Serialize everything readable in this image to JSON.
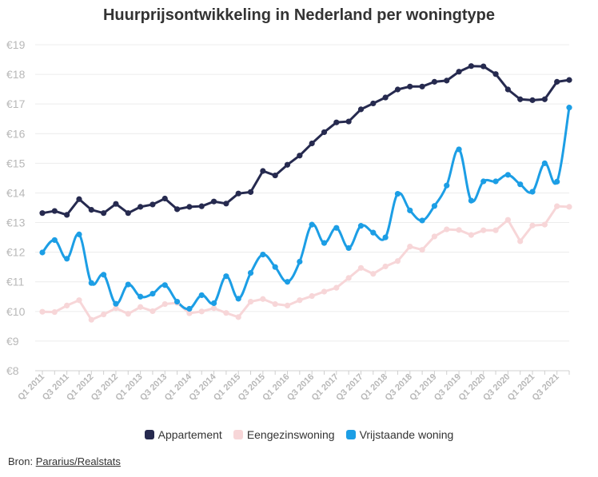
{
  "chart_data": {
    "type": "line",
    "title": "Huurprijsontwikkeling in Nederland per woningtype",
    "xlabel": "",
    "ylabel": "",
    "ylim": [
      8,
      19
    ],
    "ytick_values": [
      8,
      9,
      10,
      11,
      12,
      13,
      14,
      15,
      16,
      17,
      18,
      19
    ],
    "ytick_labels": [
      "€8",
      "€9",
      "€10",
      "€11",
      "€12",
      "€13",
      "€14",
      "€15",
      "€16",
      "€17",
      "€18",
      "€19"
    ],
    "x": [
      "Q1 2011",
      "Q2 2011",
      "Q3 2011",
      "Q4 2011",
      "Q1 2012",
      "Q2 2012",
      "Q3 2012",
      "Q4 2012",
      "Q1 2013",
      "Q2 2013",
      "Q3 2013",
      "Q4 2013",
      "Q1 2014",
      "Q2 2014",
      "Q3 2014",
      "Q4 2014",
      "Q1 2015",
      "Q2 2015",
      "Q3 2015",
      "Q4 2015",
      "Q1 2016",
      "Q2 2016",
      "Q3 2016",
      "Q4 2016",
      "Q1 2017",
      "Q2 2017",
      "Q3 2017",
      "Q4 2017",
      "Q1 2018",
      "Q2 2018",
      "Q3 2018",
      "Q4 2018",
      "Q1 2019",
      "Q2 2019",
      "Q3 2019",
      "Q4 2019",
      "Q1 2020",
      "Q2 2020",
      "Q3 2020",
      "Q4 2020",
      "Q1 2021",
      "Q2 2021",
      "Q3 2021",
      "Q4 2021"
    ],
    "tick_labels": [
      "Q1 2011",
      "",
      "Q3 2011",
      "",
      "Q1 2012",
      "",
      "Q3 2012",
      "",
      "Q1 2013",
      "",
      "Q3 2013",
      "",
      "Q1 2014",
      "",
      "Q3 2014",
      "",
      "Q1 2015",
      "",
      "Q3 2015",
      "",
      "Q1 2016",
      "",
      "Q3 2016",
      "",
      "Q1 2017",
      "",
      "Q3 2017",
      "",
      "Q1 2018",
      "",
      "Q3 2018",
      "",
      "Q1 2019",
      "",
      "Q3 2019",
      "",
      "Q1 2020",
      "",
      "Q3 2020",
      "",
      "Q1 2021",
      "",
      "Q3 2021",
      ""
    ],
    "grid": true,
    "legend_position": "bottom",
    "series": [
      {
        "name": "Appartement",
        "color": "#262a4f",
        "smooth": false,
        "values": [
          13.32,
          13.39,
          13.26,
          13.79,
          13.43,
          13.32,
          13.63,
          13.32,
          13.53,
          13.61,
          13.81,
          13.45,
          13.53,
          13.55,
          13.71,
          13.64,
          13.98,
          14.03,
          14.74,
          14.59,
          14.95,
          15.26,
          15.67,
          16.05,
          16.38,
          16.41,
          16.82,
          17.02,
          17.22,
          17.49,
          17.59,
          17.59,
          17.75,
          17.79,
          18.09,
          18.28,
          18.27,
          18.01,
          17.49,
          17.16,
          17.13,
          17.16,
          17.75,
          17.81
        ]
      },
      {
        "name": "Eengezinswoning",
        "color": "#f7d6d8",
        "smooth": false,
        "values": [
          9.99,
          9.98,
          10.2,
          10.38,
          9.72,
          9.9,
          10.11,
          9.92,
          10.15,
          10.01,
          10.25,
          10.29,
          9.94,
          10.0,
          10.11,
          9.95,
          9.81,
          10.33,
          10.42,
          10.25,
          10.2,
          10.38,
          10.52,
          10.67,
          10.8,
          11.13,
          11.47,
          11.27,
          11.52,
          11.7,
          12.19,
          12.08,
          12.53,
          12.77,
          12.75,
          12.58,
          12.74,
          12.74,
          13.09,
          12.37,
          12.9,
          12.93,
          13.55,
          13.53
        ]
      },
      {
        "name": "Vrijstaande woning",
        "color": "#1c9ee5",
        "smooth": true,
        "values": [
          11.99,
          12.41,
          11.78,
          12.6,
          10.96,
          11.24,
          10.26,
          10.91,
          10.5,
          10.6,
          10.89,
          10.33,
          10.09,
          10.55,
          10.28,
          11.19,
          10.43,
          11.3,
          11.92,
          11.5,
          11.0,
          11.68,
          12.93,
          12.31,
          12.82,
          12.14,
          12.89,
          12.66,
          12.5,
          13.97,
          13.41,
          13.07,
          13.56,
          14.25,
          15.47,
          13.74,
          14.39,
          14.39,
          14.61,
          14.29,
          14.04,
          15.0,
          14.38,
          16.88
        ]
      }
    ]
  },
  "source": {
    "prefix": "Bron: ",
    "link_text": "Pararius/Realstats"
  }
}
